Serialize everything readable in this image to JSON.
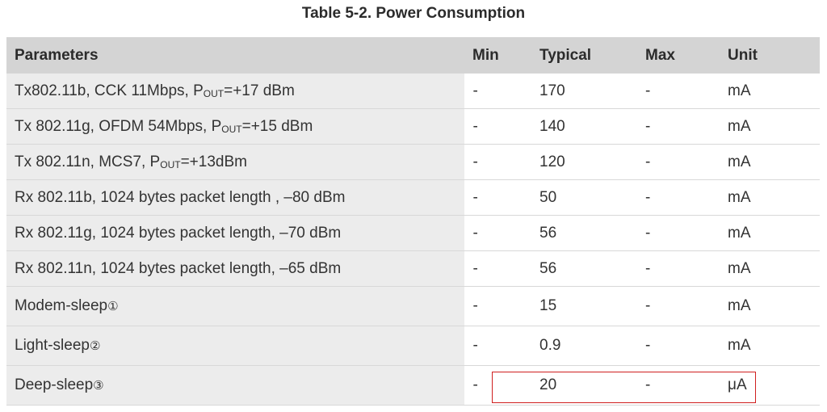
{
  "caption": "Table 5-2. Power Consumption",
  "columns": [
    "Parameters",
    "Min",
    "Typical",
    "Max",
    "Unit"
  ],
  "rows": [
    {
      "param_pre": "Tx802.11b, CCK 11Mbps, P",
      "param_sub": "OUT",
      "param_post": "=+17 dBm",
      "min": "-",
      "typical": "170",
      "max": "-",
      "unit": "mA"
    },
    {
      "param_pre": "Tx 802.11g, OFDM 54Mbps, P",
      "param_sub": "OUT",
      "param_post": "=+15 dBm",
      "min": "-",
      "typical": "140",
      "max": "-",
      "unit": "mA"
    },
    {
      "param_pre": "Tx 802.11n, MCS7, P",
      "param_sub": "OUT",
      "param_post": "=+13dBm",
      "min": "-",
      "typical": "120",
      "max": "-",
      "unit": "mA"
    },
    {
      "param_pre": "Rx 802.11b, 1024 bytes packet length , –80 dBm",
      "min": "-",
      "typical": "50",
      "max": "-",
      "unit": "mA"
    },
    {
      "param_pre": "Rx 802.11g, 1024 bytes packet length, –70 dBm",
      "min": "-",
      "typical": "56",
      "max": "-",
      "unit": "mA"
    },
    {
      "param_pre": "Rx 802.11n, 1024 bytes packet length, –65 dBm",
      "min": "-",
      "typical": "56",
      "max": "-",
      "unit": "mA"
    },
    {
      "param_pre": "Modem-sleep",
      "note": "①",
      "min": "-",
      "typical": "15",
      "max": "-",
      "unit": "mA"
    },
    {
      "param_pre": "Light-sleep",
      "note": "②",
      "min": "-",
      "typical": "0.9",
      "max": "-",
      "unit": "mA"
    },
    {
      "param_pre": "Deep-sleep",
      "note": "③",
      "min": "-",
      "typical": "20",
      "max": "-",
      "unit": "μA"
    }
  ],
  "highlight_color": "#d01f1f"
}
